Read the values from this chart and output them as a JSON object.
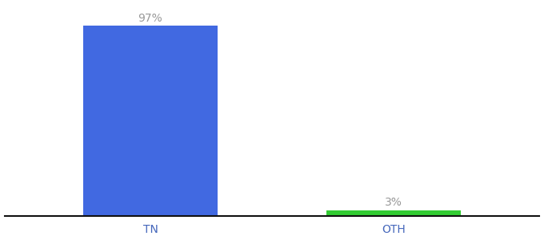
{
  "categories": [
    "TN",
    "OTH"
  ],
  "values": [
    97,
    3
  ],
  "bar_colors": [
    "#4169e1",
    "#33cc33"
  ],
  "label_texts": [
    "97%",
    "3%"
  ],
  "label_color": "#999999",
  "ylim": [
    0,
    108
  ],
  "background_color": "#ffffff",
  "bar_width": 0.55,
  "label_fontsize": 10,
  "tick_fontsize": 10,
  "tick_color": "#4466bb"
}
